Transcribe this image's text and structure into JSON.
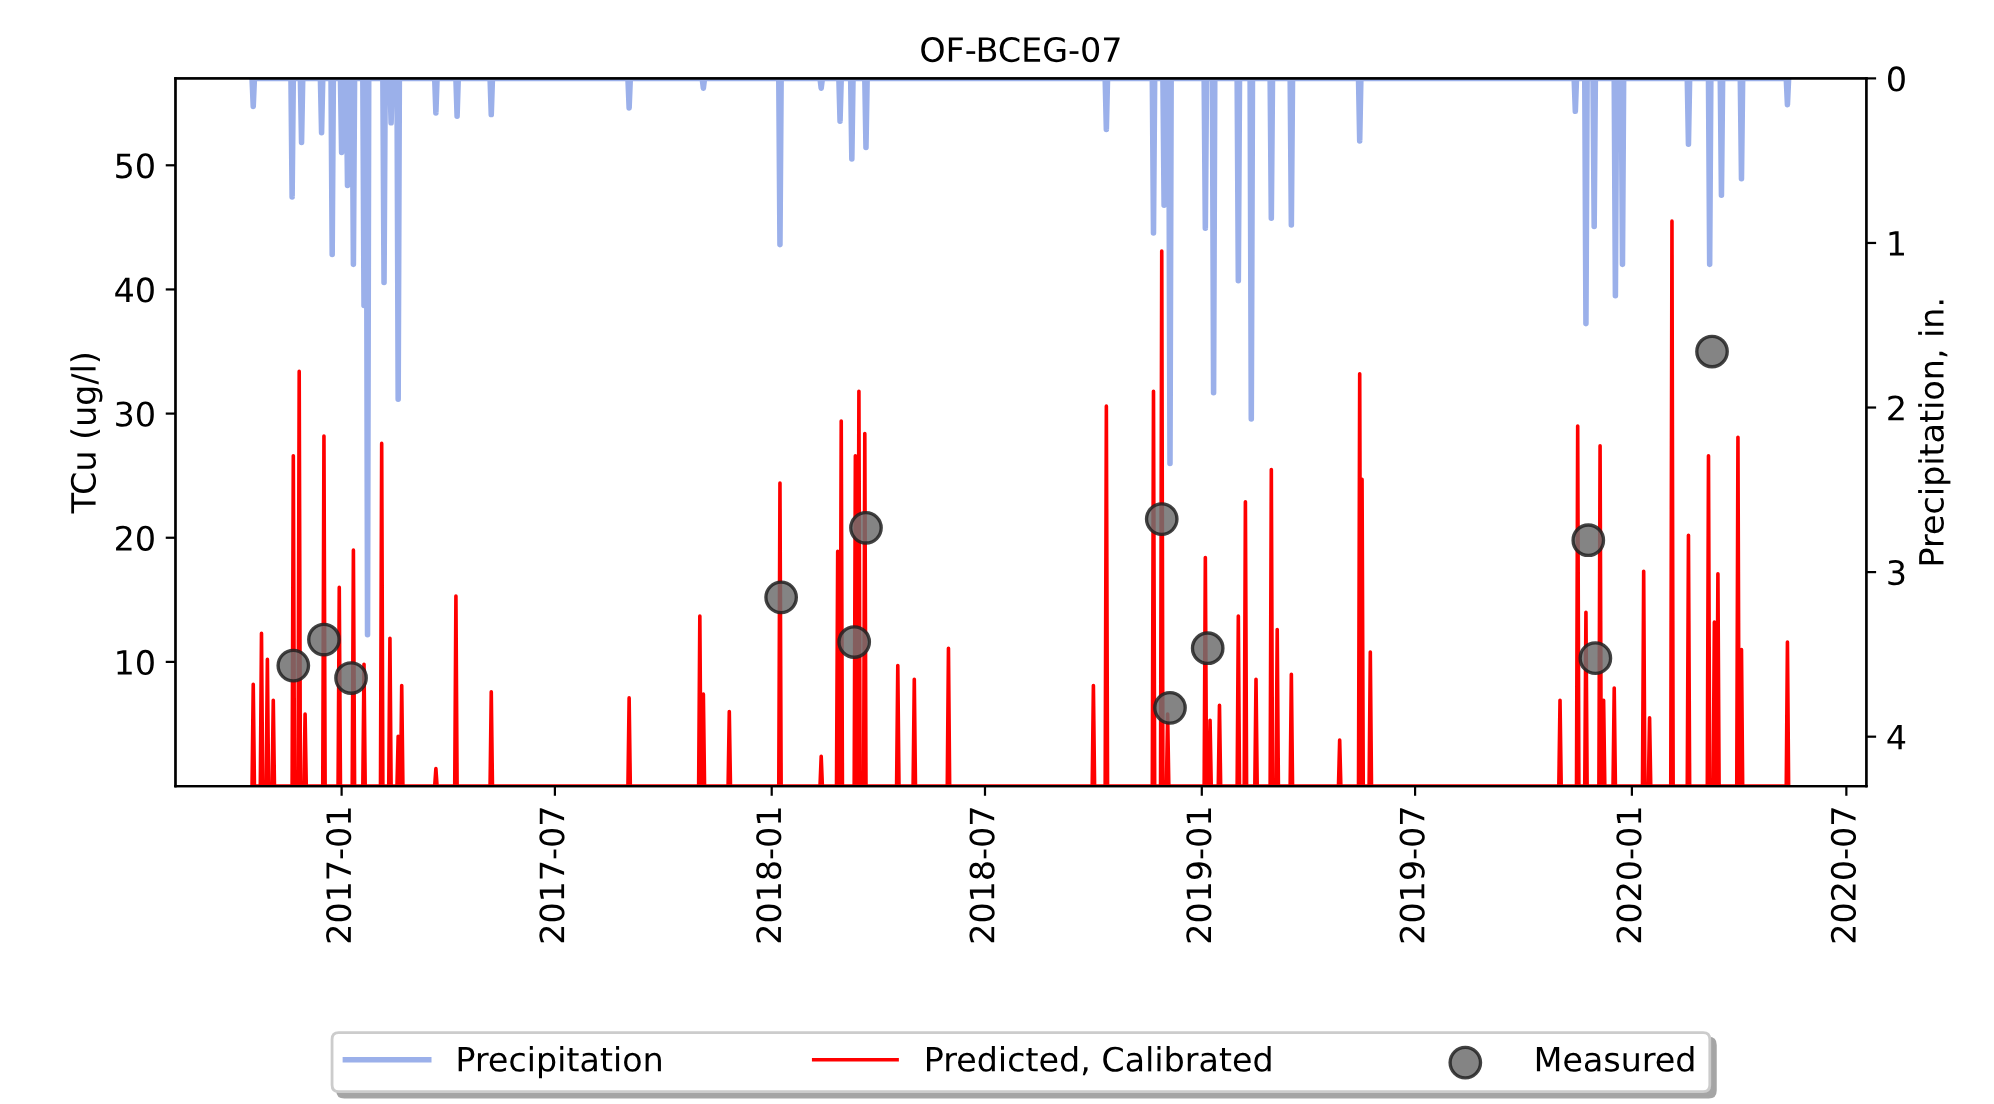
{
  "chart_data": {
    "type": "line",
    "title": "OF-BCEG-07",
    "ylabel": "TCu (ug/l)",
    "y2label": "Precipitation, in.",
    "xlim": [
      "2016-08-13",
      "2020-07-18"
    ],
    "xticks": [
      {
        "value": "2017-01-01",
        "label": "2017-01"
      },
      {
        "value": "2017-07-01",
        "label": "2017-07"
      },
      {
        "value": "2018-01-01",
        "label": "2018-01"
      },
      {
        "value": "2018-07-01",
        "label": "2018-07"
      },
      {
        "value": "2019-01-01",
        "label": "2019-01"
      },
      {
        "value": "2019-07-01",
        "label": "2019-07"
      },
      {
        "value": "2020-01-01",
        "label": "2020-01"
      },
      {
        "value": "2020-07-01",
        "label": "2020-07"
      }
    ],
    "ylim": [
      0,
      57
    ],
    "yticks": [
      10,
      20,
      30,
      40,
      50
    ],
    "y2lim": [
      4.3,
      0
    ],
    "y2ticks": [
      0,
      1,
      2,
      3,
      4
    ],
    "grid": false,
    "legend": "bottom",
    "series": [
      {
        "name": "Precipitation",
        "axis": "y2",
        "color": "#9bb0ea",
        "line_style": "solid",
        "x": [
          "2016-10-17",
          "2016-10-18",
          "2016-10-19",
          "2016-11-19",
          "2016-11-20",
          "2016-11-21",
          "2016-11-27",
          "2016-11-28",
          "2016-11-29",
          "2016-12-14",
          "2016-12-15",
          "2016-12-16",
          "2016-12-23",
          "2016-12-24",
          "2016-12-25",
          "2016-12-31",
          "2017-01-01",
          "2017-01-02",
          "2017-01-05",
          "2017-01-06",
          "2017-01-07",
          "2017-01-10",
          "2017-01-11",
          "2017-01-12",
          "2017-01-19",
          "2017-01-20",
          "2017-01-21",
          "2017-01-22",
          "2017-01-23",
          "2017-01-24",
          "2017-02-05",
          "2017-02-06",
          "2017-02-07",
          "2017-02-11",
          "2017-02-12",
          "2017-02-13",
          "2017-02-17",
          "2017-02-18",
          "2017-02-19",
          "2017-03-21",
          "2017-03-22",
          "2017-03-23",
          "2017-04-08",
          "2017-04-09",
          "2017-04-10",
          "2017-05-07",
          "2017-05-08",
          "2017-05-09",
          "2017-09-01",
          "2017-09-02",
          "2017-09-03",
          "2017-11-03",
          "2017-11-04",
          "2017-11-05",
          "2018-01-07",
          "2018-01-08",
          "2018-01-09",
          "2018-02-11",
          "2018-02-12",
          "2018-02-13",
          "2018-02-27",
          "2018-02-28",
          "2018-03-01",
          "2018-03-09",
          "2018-03-10",
          "2018-03-11",
          "2018-03-21",
          "2018-03-22",
          "2018-03-23",
          "2018-10-11",
          "2018-10-12",
          "2018-10-13",
          "2018-11-20",
          "2018-11-21",
          "2018-11-22",
          "2018-11-29",
          "2018-11-30",
          "2018-12-01",
          "2018-12-04",
          "2018-12-05",
          "2018-12-06",
          "2019-01-03",
          "2019-01-04",
          "2019-01-05",
          "2019-01-10",
          "2019-01-11",
          "2019-01-12",
          "2019-01-31",
          "2019-02-01",
          "2019-02-02",
          "2019-02-11",
          "2019-02-12",
          "2019-02-13",
          "2019-02-28",
          "2019-03-01",
          "2019-03-02",
          "2019-03-17",
          "2019-03-18",
          "2019-03-19",
          "2019-05-14",
          "2019-05-15",
          "2019-05-16",
          "2019-11-13",
          "2019-11-14",
          "2019-11-15",
          "2019-11-22",
          "2019-11-23",
          "2019-11-24",
          "2019-11-29",
          "2019-11-30",
          "2019-12-01",
          "2019-12-17",
          "2019-12-18",
          "2019-12-19",
          "2019-12-23",
          "2019-12-24",
          "2019-12-25",
          "2020-02-17",
          "2020-02-18",
          "2020-02-19",
          "2020-03-06",
          "2020-03-07",
          "2020-03-08",
          "2020-03-16",
          "2020-03-17",
          "2020-03-18",
          "2020-04-02",
          "2020-04-03",
          "2020-04-04",
          "2020-05-11",
          "2020-05-12",
          "2020-05-13"
        ],
        "values": [
          0,
          0.17,
          0,
          0,
          0.72,
          0,
          0,
          0.39,
          0,
          0,
          0.33,
          0,
          0,
          1.07,
          0,
          0,
          0.45,
          0,
          0,
          0.65,
          0,
          0,
          1.13,
          0,
          0,
          1.38,
          0,
          0,
          3.38,
          0,
          0,
          1.24,
          0,
          0,
          0.27,
          0,
          0,
          1.95,
          0,
          0,
          0.21,
          0,
          0,
          0.23,
          0,
          0,
          0.22,
          0,
          0,
          0.18,
          0,
          0,
          0.06,
          0,
          0,
          1.01,
          0,
          0,
          0.06,
          0,
          0,
          0.26,
          0,
          0,
          0.49,
          0,
          0,
          0.42,
          0,
          0,
          0.31,
          0,
          0,
          0.94,
          0,
          0,
          0.77,
          0,
          0,
          2.34,
          0,
          0,
          0.91,
          0,
          0,
          1.91,
          0,
          0,
          1.23,
          0,
          0,
          2.07,
          0,
          0,
          0.85,
          0,
          0,
          0.89,
          0,
          0,
          0.38,
          0,
          0,
          0.2,
          0,
          0,
          1.49,
          0,
          0,
          0.9,
          0,
          0,
          1.32,
          0,
          0,
          1.13,
          0,
          0,
          0.4,
          0,
          0,
          1.13,
          0,
          0,
          0.71,
          0,
          0,
          0.61,
          0,
          0,
          0.16,
          0
        ]
      },
      {
        "name": "Predicted, Calibrated",
        "axis": "y",
        "color": "#ff0000",
        "line_style": "solid",
        "x": [
          "2016-10-17",
          "2016-10-18",
          "2016-10-19",
          "2016-10-24",
          "2016-10-25",
          "2016-10-26",
          "2016-10-29",
          "2016-10-30",
          "2016-10-31",
          "2016-11-03",
          "2016-11-04",
          "2016-11-05",
          "2016-11-20",
          "2016-11-21",
          "2016-11-22",
          "2016-11-25",
          "2016-11-26",
          "2016-11-27",
          "2016-11-30",
          "2016-12-01",
          "2016-12-02",
          "2016-12-16",
          "2016-12-17",
          "2016-12-18",
          "2016-12-29",
          "2016-12-30",
          "2016-12-31",
          "2017-01-10",
          "2017-01-11",
          "2017-01-12",
          "2017-01-19",
          "2017-01-20",
          "2017-01-21",
          "2017-02-03",
          "2017-02-04",
          "2017-02-05",
          "2017-02-10",
          "2017-02-11",
          "2017-02-12",
          "2017-02-17",
          "2017-02-18",
          "2017-02-19",
          "2017-02-20",
          "2017-02-21",
          "2017-02-22",
          "2017-03-21",
          "2017-03-22",
          "2017-03-23",
          "2017-04-07",
          "2017-04-08",
          "2017-04-09",
          "2017-05-07",
          "2017-05-08",
          "2017-05-09",
          "2017-09-01",
          "2017-09-02",
          "2017-09-03",
          "2017-10-31",
          "2017-11-01",
          "2017-11-02",
          "2017-11-03",
          "2017-11-04",
          "2017-11-05",
          "2017-11-25",
          "2017-11-26",
          "2017-11-27",
          "2018-01-07",
          "2018-01-08",
          "2018-01-09",
          "2018-02-11",
          "2018-02-12",
          "2018-02-13",
          "2018-02-25",
          "2018-02-26",
          "2018-02-27",
          "2018-02-28",
          "2018-03-01",
          "2018-03-02",
          "2018-03-12",
          "2018-03-13",
          "2018-03-14",
          "2018-03-15",
          "2018-03-16",
          "2018-03-17",
          "2018-03-20",
          "2018-03-21",
          "2018-03-22",
          "2018-04-17",
          "2018-04-18",
          "2018-04-19",
          "2018-05-01",
          "2018-05-02",
          "2018-05-03",
          "2018-05-30",
          "2018-05-31",
          "2018-06-01",
          "2018-09-30",
          "2018-10-01",
          "2018-10-02",
          "2018-10-11",
          "2018-10-12",
          "2018-10-13",
          "2018-11-20",
          "2018-11-21",
          "2018-11-22",
          "2018-11-27",
          "2018-11-28",
          "2018-11-29",
          "2018-12-02",
          "2018-12-03",
          "2018-12-04",
          "2019-01-03",
          "2019-01-04",
          "2019-01-05",
          "2019-01-07",
          "2019-01-08",
          "2019-01-09",
          "2019-01-15",
          "2019-01-16",
          "2019-01-17",
          "2019-01-31",
          "2019-02-01",
          "2019-02-02",
          "2019-02-06",
          "2019-02-07",
          "2019-02-08",
          "2019-02-15",
          "2019-02-16",
          "2019-02-17",
          "2019-02-28",
          "2019-03-01",
          "2019-03-02",
          "2019-03-05",
          "2019-03-06",
          "2019-03-07",
          "2019-03-17",
          "2019-03-18",
          "2019-03-19",
          "2019-04-27",
          "2019-04-28",
          "2019-04-29",
          "2019-05-14",
          "2019-05-15",
          "2019-05-16",
          "2019-05-17",
          "2019-05-18",
          "2019-05-23",
          "2019-05-24",
          "2019-05-25",
          "2019-10-31",
          "2019-11-01",
          "2019-11-02",
          "2019-11-15",
          "2019-11-16",
          "2019-11-17",
          "2019-11-22",
          "2019-11-23",
          "2019-11-24",
          "2019-12-04",
          "2019-12-05",
          "2019-12-06",
          "2019-12-07",
          "2019-12-08",
          "2019-12-09",
          "2019-12-16",
          "2019-12-17",
          "2019-12-18",
          "2020-01-10",
          "2020-01-11",
          "2020-01-12",
          "2020-01-15",
          "2020-01-16",
          "2020-01-17",
          "2020-02-03",
          "2020-02-04",
          "2020-02-05",
          "2020-02-17",
          "2020-02-18",
          "2020-02-19",
          "2020-03-05",
          "2020-03-06",
          "2020-03-07",
          "2020-03-10",
          "2020-03-11",
          "2020-03-12",
          "2020-03-13",
          "2020-03-14",
          "2020-03-15",
          "2020-03-30",
          "2020-03-31",
          "2020-04-01",
          "2020-04-02",
          "2020-04-03",
          "2020-04-04",
          "2020-05-11",
          "2020-05-12",
          "2020-05-13"
        ],
        "values": [
          0,
          8.2,
          0,
          0,
          12.3,
          0,
          0,
          10.2,
          0,
          0,
          6.9,
          0,
          0,
          26.6,
          0,
          0,
          33.4,
          0,
          0,
          5.8,
          0,
          0,
          28.2,
          0,
          0,
          16,
          0,
          0,
          19,
          0,
          0,
          9.8,
          0,
          0,
          27.6,
          0,
          0,
          11.9,
          0,
          0,
          4,
          0,
          0,
          8.1,
          0,
          0,
          1.4,
          0,
          0,
          15.3,
          0,
          0,
          7.6,
          0,
          0,
          7.1,
          0,
          0,
          13.7,
          0,
          0,
          7.4,
          0,
          0,
          6,
          0,
          0,
          24.4,
          0,
          0,
          2.4,
          0,
          0,
          18.9,
          0,
          0,
          29.4,
          0,
          0,
          26.6,
          0,
          0,
          31.8,
          0,
          0,
          28.4,
          0,
          0,
          9.7,
          0,
          0,
          8.6,
          0,
          0,
          11.1,
          0,
          0,
          8.1,
          0,
          0,
          30.6,
          0,
          0,
          31.8,
          0,
          0,
          43.1,
          0,
          0,
          5.8,
          0,
          0,
          18.4,
          0,
          0,
          5.3,
          0,
          0,
          6.5,
          0,
          0,
          13.7,
          0,
          0,
          22.9,
          0,
          0,
          8.6,
          0,
          0,
          25.5,
          0,
          0,
          12.6,
          0,
          0,
          9,
          0,
          0,
          3.7,
          0,
          0,
          33.2,
          0,
          24.7,
          0,
          0,
          10.8,
          0,
          0,
          6.9,
          0,
          0,
          29,
          0,
          0,
          14,
          0,
          0,
          27.4,
          0,
          0,
          6.9,
          0,
          0,
          7.9,
          0,
          0,
          17.3,
          0,
          0,
          5.5,
          0,
          0,
          45.5,
          0,
          0,
          20.2,
          0,
          0,
          26.6,
          0,
          0,
          13.2,
          0,
          0,
          17.1,
          0,
          0,
          28.1,
          0,
          0,
          11,
          0,
          0,
          11.6,
          0
        ]
      },
      {
        "name": "Measured",
        "type": "scatter",
        "axis": "y",
        "color": "#6e6e6e",
        "marker": "circle",
        "x": [
          "2016-11-21",
          "2016-12-17",
          "2017-01-09",
          "2018-01-09",
          "2018-03-12",
          "2018-03-22",
          "2018-11-28",
          "2018-12-05",
          "2019-01-06",
          "2019-11-25",
          "2019-12-01",
          "2020-03-09"
        ],
        "values": [
          9.7,
          11.8,
          8.7,
          15.2,
          11.6,
          20.8,
          21.5,
          6.3,
          11.1,
          19.8,
          10.3,
          35.0
        ]
      }
    ]
  }
}
